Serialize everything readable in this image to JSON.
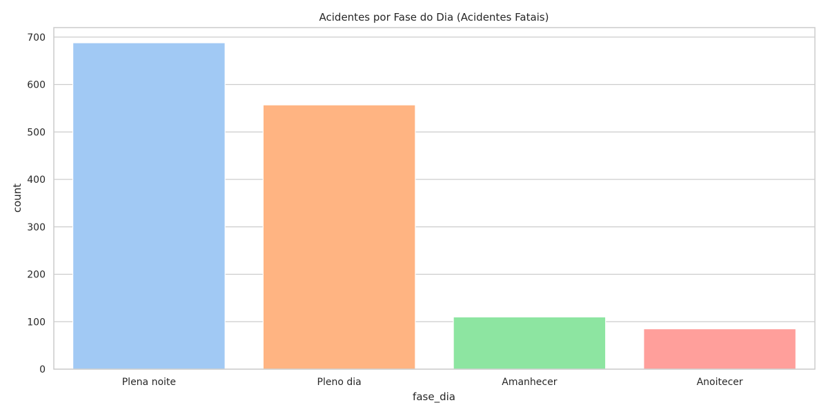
{
  "chart_data": {
    "type": "bar",
    "title": "Acidentes por Fase do Dia (Acidentes Fatais)",
    "xlabel": "fase_dia",
    "ylabel": "count",
    "categories": [
      "Plena noite",
      "Pleno dia",
      "Amanhecer",
      "Anoitecer"
    ],
    "values": [
      688,
      557,
      110,
      85
    ],
    "colors": [
      "#a1c9f4",
      "#ffb482",
      "#8de5a1",
      "#ff9f9b"
    ],
    "ylim": [
      0,
      720
    ],
    "yticks": [
      0,
      100,
      200,
      300,
      400,
      500,
      600,
      700
    ],
    "grid": true,
    "legend": "none"
  }
}
